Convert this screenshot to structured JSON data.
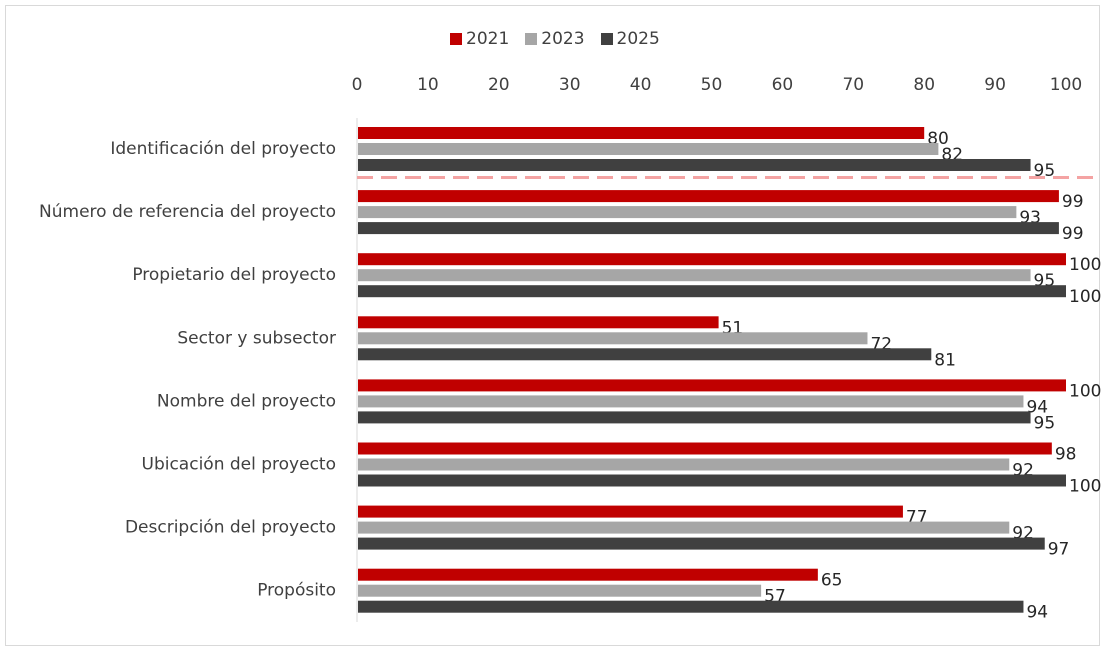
{
  "chart_data": {
    "type": "bar",
    "orientation": "horizontal",
    "title": "",
    "xlabel": "",
    "ylabel": "",
    "xlim": [
      0,
      100
    ],
    "x_ticks": [
      0,
      10,
      20,
      30,
      40,
      50,
      60,
      70,
      80,
      90,
      100
    ],
    "axis_position": "top",
    "grid": false,
    "legend_position": "top",
    "categories": [
      "Identificación del proyecto",
      "Número de referencia del proyecto",
      "Propietario del proyecto",
      "Sector y subsector",
      "Nombre del proyecto",
      "Ubicación del proyecto",
      "Descripción del proyecto",
      "Propósito"
    ],
    "series": [
      {
        "name": "2021",
        "color": "#c00000",
        "values": [
          80,
          99,
          100,
          51,
          100,
          98,
          77,
          65
        ]
      },
      {
        "name": "2023",
        "color": "#a6a6a6",
        "values": [
          82,
          93,
          95,
          72,
          94,
          92,
          92,
          57
        ]
      },
      {
        "name": "2025",
        "color": "#404040",
        "values": [
          95,
          99,
          100,
          81,
          95,
          100,
          97,
          94
        ]
      }
    ],
    "divider": {
      "style": "dashed",
      "color": "#f4a3a3",
      "after_category": "Identificación del proyecto"
    }
  }
}
